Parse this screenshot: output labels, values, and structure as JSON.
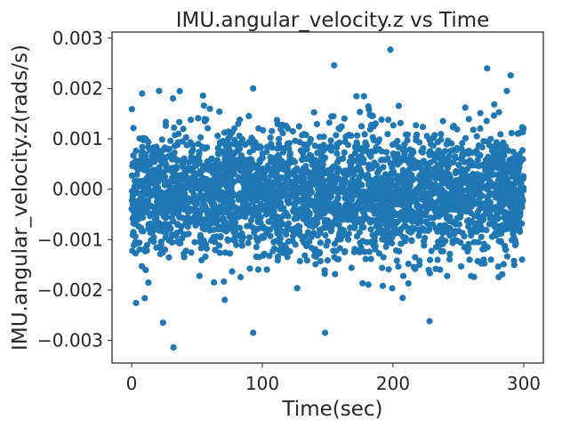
{
  "chart_data": {
    "type": "scatter",
    "title": "IMU.angular_velocity.z vs Time",
    "xlabel": "Time(sec)",
    "ylabel": "IMU.angular_velocity.z(rads/s)",
    "xlim": [
      -15,
      315
    ],
    "ylim": [
      -0.00345,
      0.00312
    ],
    "xticks": [
      0,
      100,
      200,
      300
    ],
    "xtick_labels": [
      "0",
      "100",
      "200",
      "300"
    ],
    "yticks": [
      -0.003,
      -0.002,
      -0.001,
      0.0,
      0.001,
      0.002,
      0.003
    ],
    "ytick_labels": [
      "−0.003",
      "−0.002",
      "−0.001",
      "0.000",
      "0.001",
      "0.002",
      "0.003"
    ],
    "grid": false,
    "marker_color": "#1f77b4",
    "series": [
      {
        "x_range": [
          0,
          300
        ],
        "y_typical_range": [
          -0.0015,
          0.0013
        ],
        "y_mean": -0.0001,
        "outliers": [
          {
            "x": 198,
            "y": 0.00277
          },
          {
            "x": 155,
            "y": 0.00246
          },
          {
            "x": 272,
            "y": 0.0024
          },
          {
            "x": 290,
            "y": 0.00226
          },
          {
            "x": 8,
            "y": 0.0019
          },
          {
            "x": 21,
            "y": 0.00195
          },
          {
            "x": 93,
            "y": 0.002
          },
          {
            "x": 32,
            "y": -0.00314
          },
          {
            "x": 93,
            "y": -0.00285
          },
          {
            "x": 148,
            "y": -0.00285
          },
          {
            "x": 24,
            "y": -0.00265
          },
          {
            "x": 228,
            "y": -0.00262
          }
        ]
      }
    ]
  }
}
